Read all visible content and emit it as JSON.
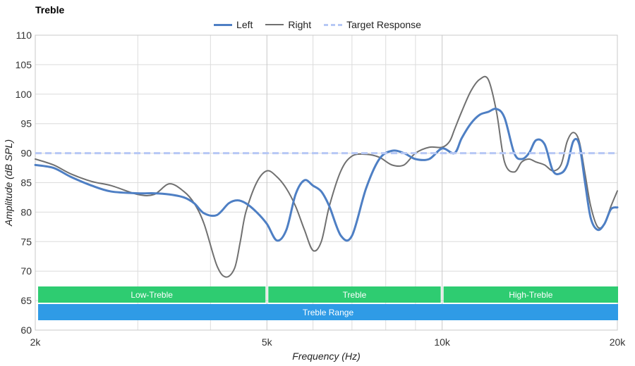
{
  "chart_data": {
    "type": "line",
    "title": "Treble",
    "xlabel": "Frequency (Hz)",
    "ylabel": "Amplitude (dB SPL)",
    "x_scale": "log",
    "xlim": [
      2000,
      20000
    ],
    "ylim": [
      60,
      110
    ],
    "grid": true,
    "legend_position": "top-center",
    "x_ticks": [
      {
        "value": 2000,
        "label": "2k"
      },
      {
        "value": 5000,
        "label": "5k"
      },
      {
        "value": 10000,
        "label": "10k"
      },
      {
        "value": 20000,
        "label": "20k"
      }
    ],
    "x_minor_grid": [
      3000,
      4000,
      6000,
      7000,
      8000,
      9000
    ],
    "y_ticks": [
      60,
      65,
      70,
      75,
      80,
      85,
      90,
      95,
      100,
      105,
      110
    ],
    "series": [
      {
        "name": "Left",
        "color": "#4e7fc4",
        "style": "solid",
        "x": [
          2000,
          2150,
          2300,
          2500,
          2700,
          3000,
          3200,
          3400,
          3600,
          3750,
          3900,
          4100,
          4300,
          4450,
          4600,
          4800,
          5000,
          5200,
          5400,
          5600,
          5800,
          6000,
          6200,
          6400,
          6700,
          7000,
          7400,
          7800,
          8200,
          8600,
          9000,
          9500,
          10000,
          10500,
          10800,
          11200,
          11600,
          12000,
          12400,
          12800,
          13300,
          13700,
          14100,
          14500,
          15000,
          15500,
          16000,
          16400,
          16800,
          17200,
          17600,
          18000,
          18500,
          19000,
          19500,
          20000
        ],
        "y": [
          88.0,
          87.5,
          86.0,
          84.5,
          83.5,
          83.2,
          83.2,
          83.0,
          82.5,
          81.5,
          79.8,
          79.5,
          81.5,
          82.0,
          81.5,
          80.0,
          78.0,
          75.2,
          77.0,
          83.0,
          85.4,
          84.5,
          83.5,
          81.0,
          76.0,
          76.0,
          84.0,
          89.0,
          90.4,
          90.0,
          89.0,
          89.0,
          90.8,
          90.0,
          92.5,
          95.0,
          96.5,
          97.0,
          97.5,
          96.0,
          90.0,
          89.0,
          90.0,
          92.2,
          91.5,
          87.0,
          86.6,
          88.0,
          92.0,
          91.5,
          85.0,
          79.0,
          77.0,
          78.0,
          80.5,
          80.8
        ]
      },
      {
        "name": "Right",
        "color": "#707070",
        "style": "solid",
        "x": [
          2000,
          2150,
          2300,
          2500,
          2700,
          3000,
          3200,
          3400,
          3600,
          3750,
          3900,
          4100,
          4250,
          4400,
          4500,
          4600,
          4800,
          5000,
          5200,
          5400,
          5600,
          5800,
          6000,
          6200,
          6400,
          6700,
          7000,
          7400,
          7800,
          8200,
          8600,
          9000,
          9500,
          10000,
          10300,
          10500,
          10800,
          11200,
          11600,
          12000,
          12400,
          12800,
          13300,
          13700,
          14100,
          14500,
          15000,
          15500,
          16000,
          16400,
          16800,
          17200,
          17600,
          18000,
          18500,
          19000,
          19500,
          20000
        ],
        "y": [
          89.0,
          88.0,
          86.5,
          85.2,
          84.5,
          83.0,
          83.0,
          84.8,
          83.5,
          81.5,
          78.0,
          71.0,
          69.0,
          70.5,
          75.0,
          80.0,
          85.0,
          87.0,
          86.0,
          84.0,
          81.0,
          77.0,
          73.5,
          75.0,
          81.0,
          87.0,
          89.5,
          89.8,
          89.3,
          88.0,
          88.0,
          90.0,
          91.0,
          91.0,
          92.0,
          94.0,
          97.0,
          100.5,
          102.5,
          102.5,
          97.0,
          88.5,
          86.8,
          88.5,
          89.0,
          88.5,
          88.0,
          87.0,
          88.0,
          92.0,
          93.5,
          92.0,
          86.5,
          81.0,
          77.5,
          78.0,
          81.0,
          83.6
        ]
      },
      {
        "name": "Target Response",
        "color": "#b6c8f5",
        "style": "dashed",
        "x": [
          2000,
          20000
        ],
        "y": [
          90,
          90
        ]
      }
    ],
    "bands": [
      {
        "label": "Low-Treble",
        "from": 2000,
        "to": 5000,
        "row": 1,
        "color": "#2ecc71"
      },
      {
        "label": "Treble",
        "from": 5000,
        "to": 10000,
        "row": 1,
        "color": "#2ecc71"
      },
      {
        "label": "High-Treble",
        "from": 10000,
        "to": 20000,
        "row": 1,
        "color": "#2ecc71"
      },
      {
        "label": "Treble Range",
        "from": 2000,
        "to": 20000,
        "row": 2,
        "color": "#2f9be6"
      }
    ]
  }
}
